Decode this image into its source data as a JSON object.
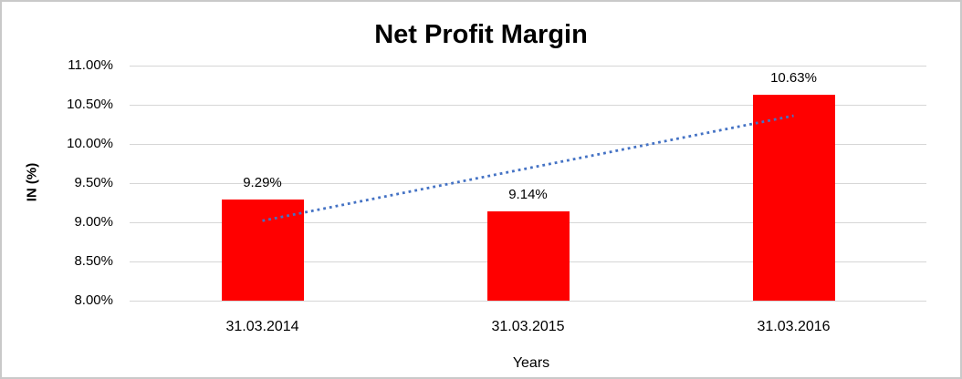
{
  "chart_data": {
    "type": "bar",
    "title": "Net Profit Margin",
    "xlabel": "Years",
    "ylabel": "IN (%)",
    "categories": [
      "31.03.2014",
      "31.03.2015",
      "31.03.2016"
    ],
    "values": [
      9.29,
      9.14,
      10.63
    ],
    "value_labels": [
      "9.29%",
      "9.14%",
      "10.63%"
    ],
    "ylim": [
      8,
      11
    ],
    "yticks": [
      {
        "label": "11.00%",
        "value": 11
      },
      {
        "label": "10.50%",
        "value": 10.5
      },
      {
        "label": "10.00%",
        "value": 10
      },
      {
        "label": "9.50%",
        "value": 9.5
      },
      {
        "label": "9.00%",
        "value": 9
      },
      {
        "label": "8.50%",
        "value": 8.5
      },
      {
        "label": "8.00%",
        "value": 8
      }
    ],
    "grid": "horizontal",
    "legend": "none",
    "bar_color": "#ff0000",
    "gridline_color": "#d6d6d6",
    "border_color": "#c9c9c9",
    "trendline": {
      "type": "linear",
      "style": "dotted",
      "color": "#4472c4",
      "start_value": 9.02,
      "end_value": 10.36
    }
  }
}
